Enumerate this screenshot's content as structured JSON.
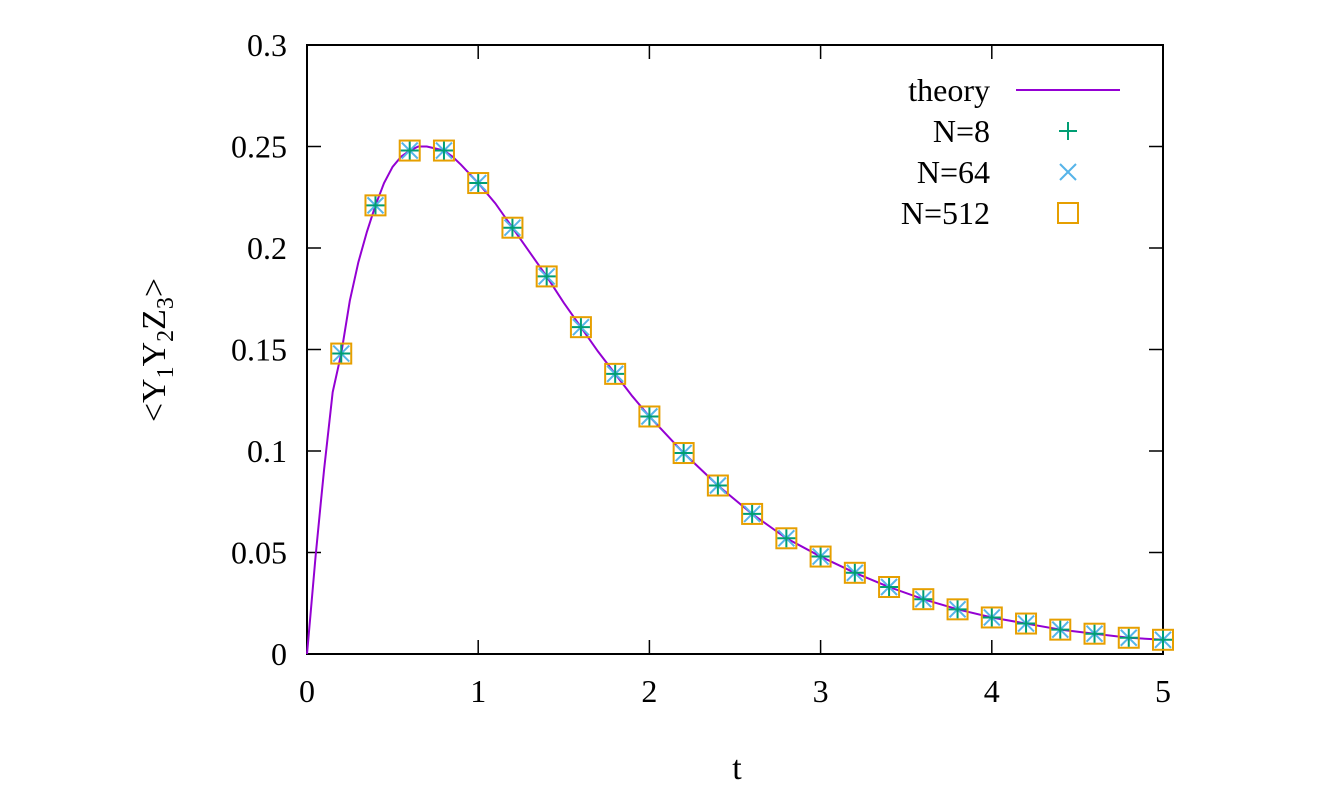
{
  "chart_data": {
    "type": "scatter",
    "title": "",
    "xlabel": "t",
    "ylabel": {
      "parts": [
        {
          "text": "<Y",
          "sub": "1"
        },
        {
          "text": "Y",
          "sub": "2"
        },
        {
          "text": "Z",
          "sub": "3"
        },
        {
          "text": ">",
          "sub": ""
        }
      ]
    },
    "xlim": [
      0,
      5
    ],
    "ylim": [
      0,
      0.3
    ],
    "xticks": [
      0,
      1,
      2,
      3,
      4,
      5
    ],
    "xtick_labels": [
      "0",
      "1",
      "2",
      "3",
      "4",
      "5"
    ],
    "yticks": [
      0,
      0.05,
      0.1,
      0.15,
      0.2,
      0.25,
      0.3
    ],
    "ytick_labels": [
      "0",
      "0.05",
      "0.1",
      "0.15",
      "0.2",
      "0.25",
      "0.3"
    ],
    "grid": false,
    "legend_position": "top-right",
    "x": [
      0.2,
      0.4,
      0.6,
      0.8,
      1.0,
      1.2,
      1.4,
      1.6,
      1.8,
      2.0,
      2.2,
      2.4,
      2.6,
      2.8,
      3.0,
      3.2,
      3.4,
      3.6,
      3.8,
      4.0,
      4.2,
      4.4,
      4.6,
      4.8,
      5.0
    ],
    "series": [
      {
        "name": "theory",
        "kind": "line",
        "color": "#9400d3",
        "x": [
          0,
          0.02,
          0.05,
          0.08,
          0.1,
          0.15,
          0.2,
          0.25,
          0.3,
          0.35,
          0.4,
          0.45,
          0.5,
          0.55,
          0.6,
          0.65,
          0.7,
          0.75,
          0.8,
          0.85,
          0.9,
          1.0,
          1.1,
          1.2,
          1.3,
          1.4,
          1.5,
          1.6,
          1.7,
          1.8,
          1.9,
          2.0,
          2.2,
          2.4,
          2.6,
          2.8,
          3.0,
          3.2,
          3.4,
          3.6,
          3.8,
          4.0,
          4.2,
          4.4,
          4.6,
          4.8,
          5.0
        ],
        "values": [
          0,
          0.019,
          0.048,
          0.074,
          0.091,
          0.129,
          0.148,
          0.174,
          0.193,
          0.208,
          0.221,
          0.232,
          0.24,
          0.245,
          0.248,
          0.25,
          0.25,
          0.249,
          0.248,
          0.245,
          0.241,
          0.232,
          0.222,
          0.21,
          0.198,
          0.186,
          0.173,
          0.161,
          0.149,
          0.138,
          0.127,
          0.117,
          0.099,
          0.083,
          0.069,
          0.057,
          0.048,
          0.04,
          0.033,
          0.027,
          0.022,
          0.018,
          0.015,
          0.012,
          0.01,
          0.008,
          0.007
        ]
      },
      {
        "name": "N=8",
        "kind": "marker",
        "marker": "plus",
        "color": "#009e73",
        "values": [
          0.148,
          0.221,
          0.248,
          0.248,
          0.232,
          0.21,
          0.186,
          0.161,
          0.138,
          0.117,
          0.099,
          0.083,
          0.069,
          0.057,
          0.048,
          0.04,
          0.033,
          0.027,
          0.022,
          0.018,
          0.015,
          0.012,
          0.01,
          0.008,
          0.007
        ]
      },
      {
        "name": "N=64",
        "kind": "marker",
        "marker": "cross",
        "color": "#56b4e9",
        "values": [
          0.148,
          0.221,
          0.248,
          0.248,
          0.232,
          0.21,
          0.186,
          0.161,
          0.138,
          0.117,
          0.099,
          0.083,
          0.069,
          0.057,
          0.048,
          0.04,
          0.033,
          0.027,
          0.022,
          0.018,
          0.015,
          0.012,
          0.01,
          0.008,
          0.007
        ]
      },
      {
        "name": "N=512",
        "kind": "marker",
        "marker": "square",
        "color": "#e69f00",
        "values": [
          0.148,
          0.221,
          0.248,
          0.248,
          0.232,
          0.21,
          0.186,
          0.161,
          0.138,
          0.117,
          0.099,
          0.083,
          0.069,
          0.057,
          0.048,
          0.04,
          0.033,
          0.027,
          0.022,
          0.018,
          0.015,
          0.012,
          0.01,
          0.008,
          0.007
        ]
      }
    ]
  }
}
